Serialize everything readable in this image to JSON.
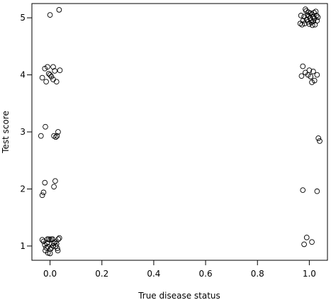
{
  "chart_data": {
    "type": "scatter",
    "title": "",
    "xlabel": "True disease status",
    "ylabel": "Test score",
    "xlim": [
      -0.07,
      1.07
    ],
    "ylim": [
      0.75,
      5.25
    ],
    "xticks": [
      0.0,
      0.2,
      0.4,
      0.6,
      0.8,
      1.0
    ],
    "xtick_labels": [
      "0.0",
      "0.2",
      "0.4",
      "0.6",
      "0.8",
      "1.0"
    ],
    "yticks": [
      1,
      2,
      3,
      4,
      5
    ],
    "ytick_labels": [
      "1",
      "2",
      "3",
      "4",
      "5"
    ],
    "grid": false,
    "legend": "none",
    "marker": "open-circle",
    "series": [
      {
        "points": [
          {
            "x": -0.03,
            "y": 1.11
          },
          {
            "x": -0.025,
            "y": 1.08
          },
          {
            "x": -0.02,
            "y": 1.02
          },
          {
            "x": -0.015,
            "y": 0.97
          },
          {
            "x": -0.01,
            "y": 1.12
          },
          {
            "x": -0.005,
            "y": 1.12
          },
          {
            "x": 0.0,
            "y": 1.11
          },
          {
            "x": 0.005,
            "y": 1.12
          },
          {
            "x": 0.01,
            "y": 1.12
          },
          {
            "x": -0.012,
            "y": 1.05
          },
          {
            "x": -0.008,
            "y": 0.99
          },
          {
            "x": 0.002,
            "y": 0.95
          },
          {
            "x": -0.018,
            "y": 0.92
          },
          {
            "x": -0.008,
            "y": 0.88
          },
          {
            "x": 0.0,
            "y": 0.87
          },
          {
            "x": 0.005,
            "y": 0.97
          },
          {
            "x": 0.012,
            "y": 1.0
          },
          {
            "x": 0.015,
            "y": 1.05
          },
          {
            "x": 0.02,
            "y": 1.07
          },
          {
            "x": 0.025,
            "y": 1.04
          },
          {
            "x": 0.028,
            "y": 0.96
          },
          {
            "x": 0.03,
            "y": 0.92
          },
          {
            "x": 0.032,
            "y": 1.12
          },
          {
            "x": 0.036,
            "y": 1.14
          },
          {
            "x": 0.022,
            "y": 1.0
          },
          {
            "x": -0.03,
            "y": 1.89
          },
          {
            "x": -0.025,
            "y": 1.94
          },
          {
            "x": -0.02,
            "y": 2.11
          },
          {
            "x": 0.015,
            "y": 2.04
          },
          {
            "x": 0.02,
            "y": 2.14
          },
          {
            "x": -0.035,
            "y": 2.93
          },
          {
            "x": -0.018,
            "y": 3.09
          },
          {
            "x": 0.015,
            "y": 2.93
          },
          {
            "x": 0.022,
            "y": 2.91
          },
          {
            "x": 0.027,
            "y": 2.93
          },
          {
            "x": 0.031,
            "y": 3.0
          },
          {
            "x": -0.03,
            "y": 3.95
          },
          {
            "x": -0.02,
            "y": 4.11
          },
          {
            "x": -0.015,
            "y": 3.88
          },
          {
            "x": -0.01,
            "y": 4.14
          },
          {
            "x": -0.005,
            "y": 4.02
          },
          {
            "x": 0.0,
            "y": 4.0
          },
          {
            "x": 0.005,
            "y": 3.97
          },
          {
            "x": 0.012,
            "y": 3.92
          },
          {
            "x": 0.018,
            "y": 4.07
          },
          {
            "x": 0.025,
            "y": 3.88
          },
          {
            "x": 0.038,
            "y": 4.08
          },
          {
            "x": 0.012,
            "y": 4.14
          },
          {
            "x": 0.0,
            "y": 5.05
          },
          {
            "x": 0.035,
            "y": 5.14
          },
          {
            "x": 0.98,
            "y": 1.03
          },
          {
            "x": 0.99,
            "y": 1.15
          },
          {
            "x": 1.01,
            "y": 1.07
          },
          {
            "x": 0.975,
            "y": 1.98
          },
          {
            "x": 1.03,
            "y": 1.96
          },
          {
            "x": 1.035,
            "y": 2.89
          },
          {
            "x": 1.04,
            "y": 2.84
          },
          {
            "x": 0.97,
            "y": 3.98
          },
          {
            "x": 0.975,
            "y": 4.15
          },
          {
            "x": 0.985,
            "y": 4.04
          },
          {
            "x": 0.995,
            "y": 4.0
          },
          {
            "x": 1.0,
            "y": 4.08
          },
          {
            "x": 1.005,
            "y": 3.97
          },
          {
            "x": 1.01,
            "y": 3.87
          },
          {
            "x": 1.015,
            "y": 4.06
          },
          {
            "x": 1.02,
            "y": 3.9
          },
          {
            "x": 1.03,
            "y": 4.0
          },
          {
            "x": 0.965,
            "y": 4.9
          },
          {
            "x": 0.968,
            "y": 5.04
          },
          {
            "x": 0.972,
            "y": 4.88
          },
          {
            "x": 0.976,
            "y": 4.95
          },
          {
            "x": 0.98,
            "y": 5.02
          },
          {
            "x": 0.982,
            "y": 4.9
          },
          {
            "x": 0.985,
            "y": 5.15
          },
          {
            "x": 0.988,
            "y": 5.12
          },
          {
            "x": 0.99,
            "y": 4.97
          },
          {
            "x": 0.993,
            "y": 5.05
          },
          {
            "x": 0.995,
            "y": 4.93
          },
          {
            "x": 0.998,
            "y": 5.03
          },
          {
            "x": 1.0,
            "y": 4.89
          },
          {
            "x": 1.003,
            "y": 5.0
          },
          {
            "x": 1.005,
            "y": 5.08
          },
          {
            "x": 1.007,
            "y": 4.96
          },
          {
            "x": 1.01,
            "y": 5.06
          },
          {
            "x": 1.012,
            "y": 4.87
          },
          {
            "x": 1.014,
            "y": 5.02
          },
          {
            "x": 1.016,
            "y": 4.94
          },
          {
            "x": 1.018,
            "y": 5.09
          },
          {
            "x": 1.02,
            "y": 4.99
          },
          {
            "x": 1.022,
            "y": 4.88
          },
          {
            "x": 1.025,
            "y": 5.11
          },
          {
            "x": 1.028,
            "y": 5.04
          },
          {
            "x": 1.03,
            "y": 4.95
          },
          {
            "x": 1.033,
            "y": 5.01
          },
          {
            "x": 1.008,
            "y": 4.92
          },
          {
            "x": 0.996,
            "y": 5.1
          }
        ]
      }
    ]
  }
}
